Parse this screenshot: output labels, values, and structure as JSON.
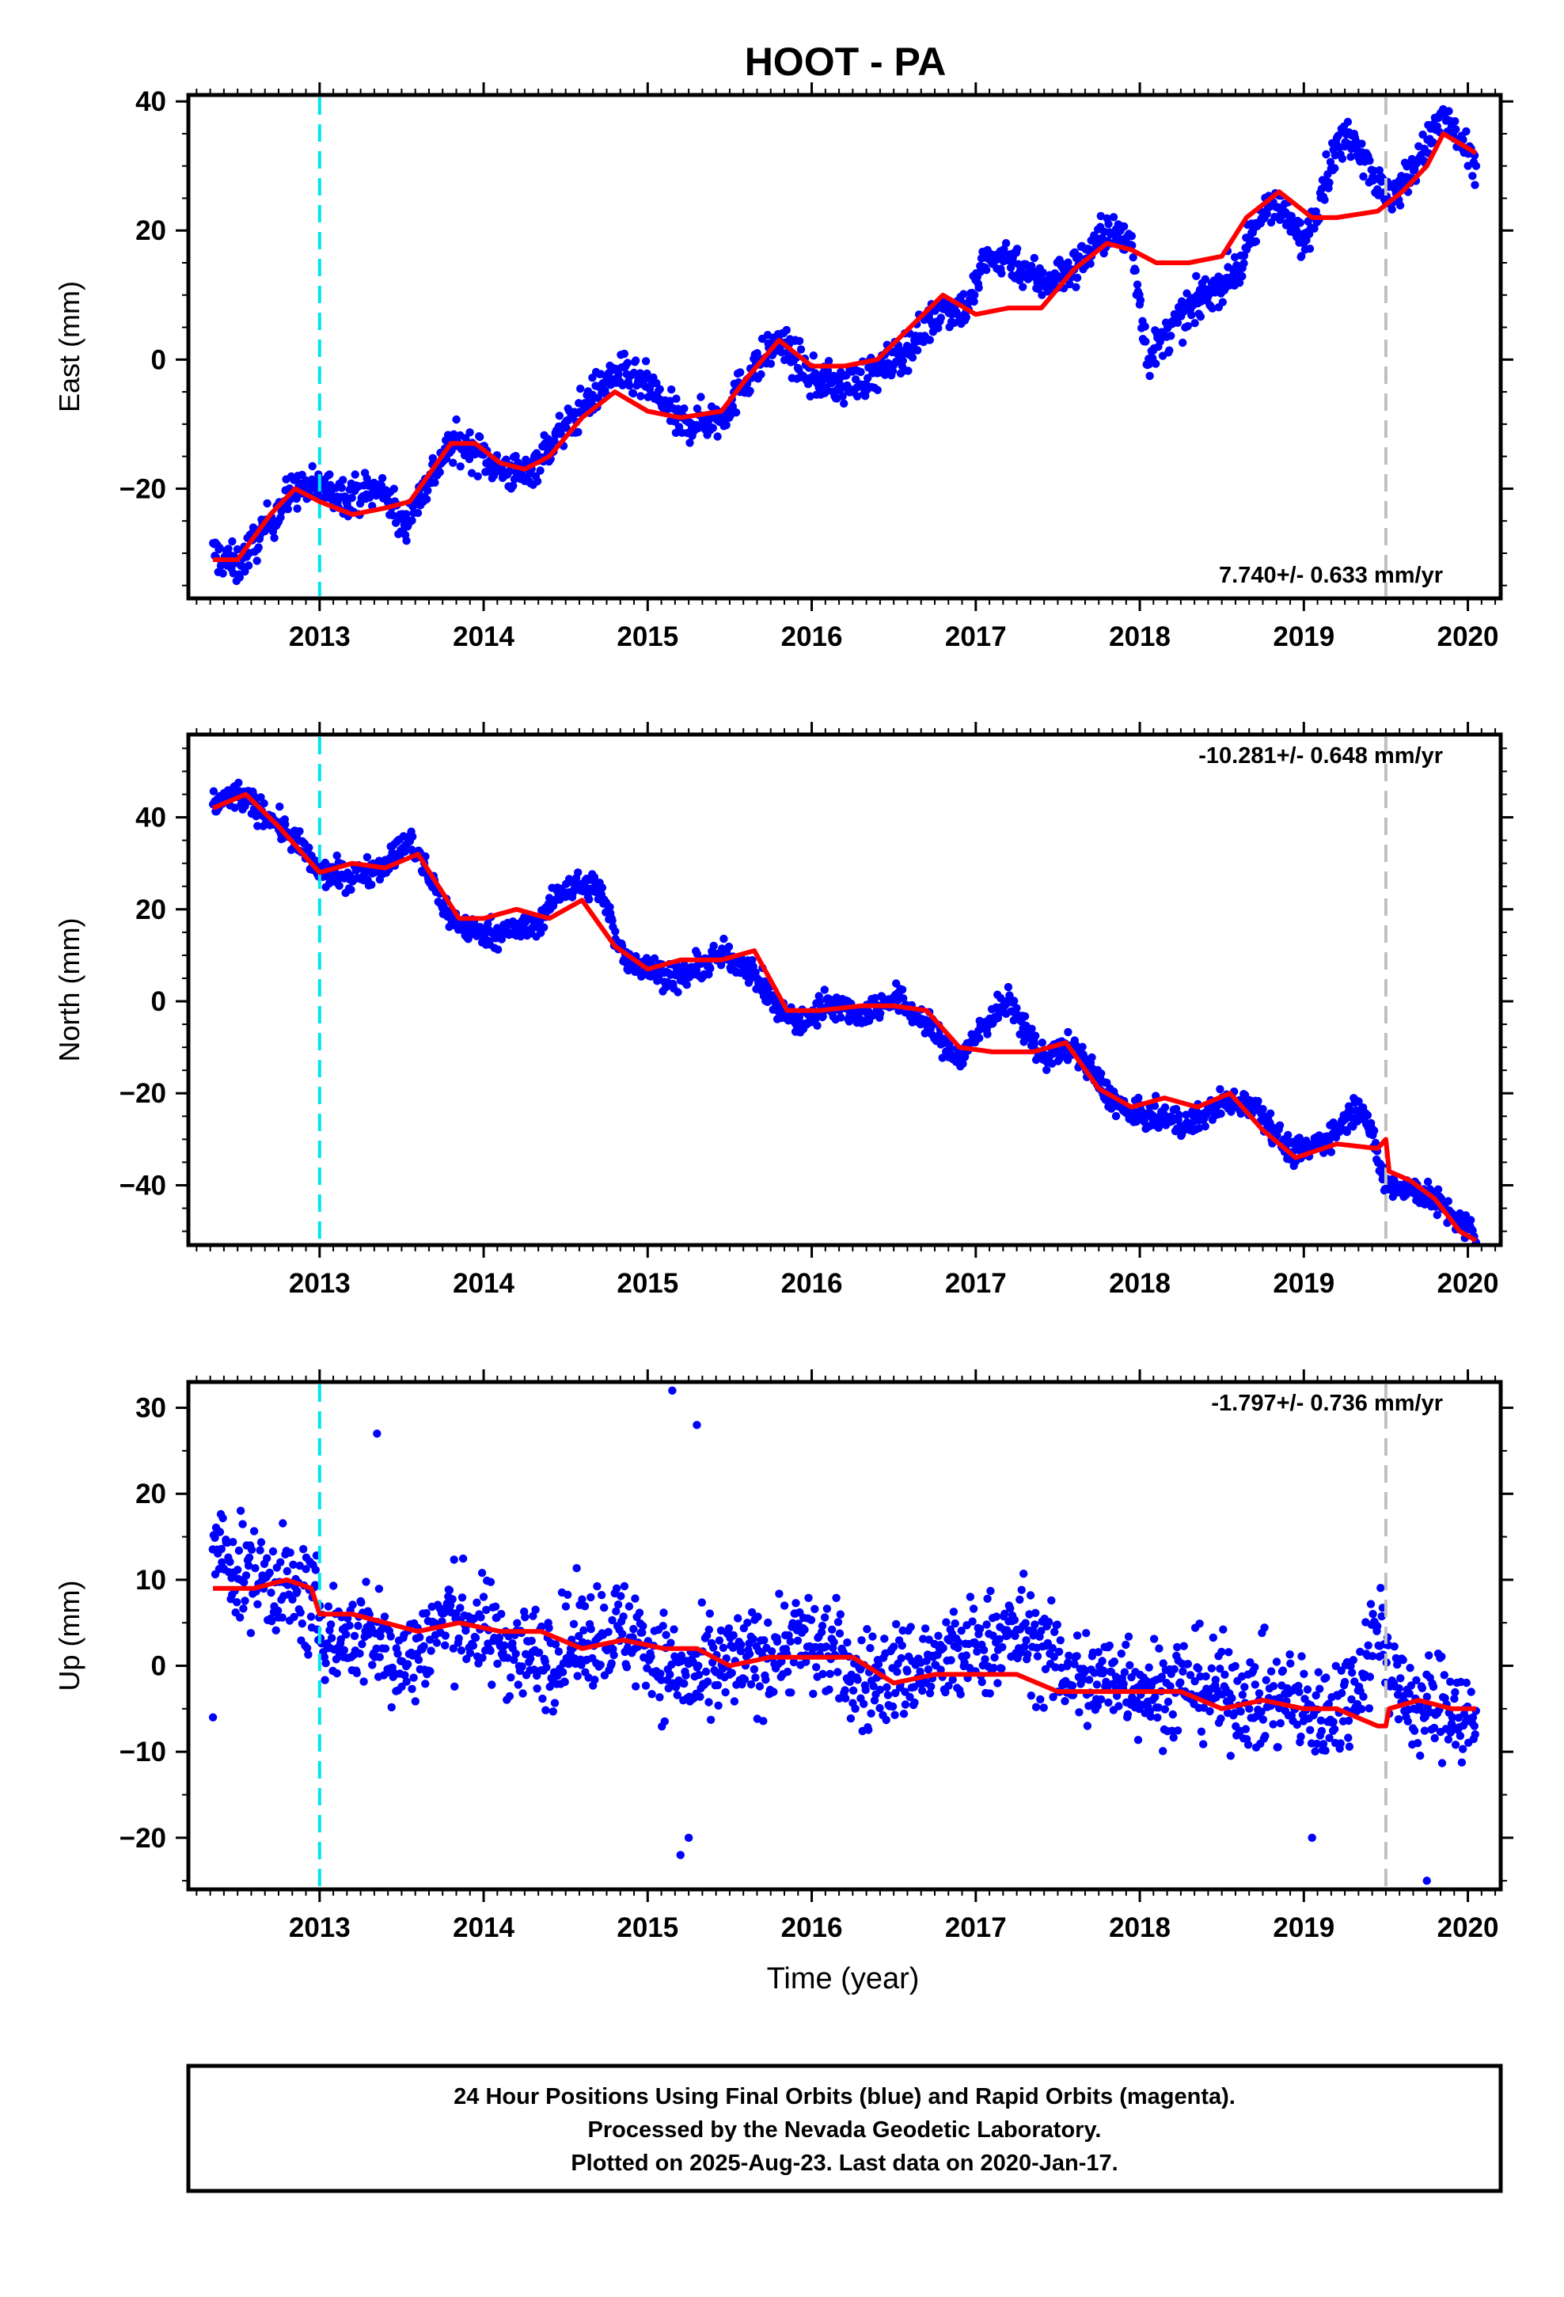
{
  "title": "HOOT - PA",
  "xlabel": "Time (year)",
  "footer": {
    "line1": "24 Hour Positions Using Final Orbits (blue) and Rapid Orbits (magenta).",
    "line2": "Processed by the Nevada Geodetic Laboratory.",
    "line3": "Plotted on 2025-Aug-23. Last data on 2020-Jan-17."
  },
  "colors": {
    "data_points": "#0000ff",
    "model_fit": "#ff0000",
    "marker_cyan": "#00e5ee",
    "marker_gray": "#c0c0c0",
    "frame": "#000000"
  },
  "chart_data": [
    {
      "type": "scatter",
      "ylabel": "East (mm)",
      "rate_text": "7.740+/- 0.633 mm/yr",
      "xlim": [
        2012.2,
        2020.2
      ],
      "ylim": [
        -37,
        41
      ],
      "xticks": [
        2013,
        2014,
        2015,
        2016,
        2017,
        2018,
        2019,
        2020
      ],
      "yticks": [
        -20,
        0,
        20,
        40
      ],
      "vertical_markers": [
        {
          "x": 2013.0,
          "style": "dashed",
          "color": "cyan"
        },
        {
          "x": 2019.5,
          "style": "dashed",
          "color": "gray"
        }
      ],
      "series": [
        {
          "kind": "daily positions",
          "envelope_x": [
            2012.35,
            2012.5,
            2012.7,
            2012.85,
            2013.0,
            2013.2,
            2013.4,
            2013.5,
            2013.8,
            2013.95,
            2014.1,
            2014.25,
            2014.45,
            2014.65,
            2014.8,
            2015.0,
            2015.2,
            2015.45,
            2015.6,
            2015.8,
            2016.0,
            2016.2,
            2016.4,
            2016.6,
            2016.8,
            2016.95,
            2017.05,
            2017.2,
            2017.4,
            2017.6,
            2017.8,
            2017.95,
            2018.05,
            2018.2,
            2018.4,
            2018.6,
            2018.8,
            2019.0,
            2019.2,
            2019.3,
            2019.5,
            2019.6,
            2019.75,
            2019.85,
            2020.05
          ],
          "envelope_y": [
            -30,
            -32,
            -25,
            -20,
            -20,
            -21,
            -20,
            -26,
            -13,
            -14,
            -17,
            -18,
            -12,
            -6,
            -2,
            -4,
            -10,
            -9,
            -3,
            3,
            -3,
            -4,
            -2,
            2,
            8,
            8,
            15,
            16,
            12,
            14,
            20,
            18,
            0,
            5,
            10,
            14,
            25,
            18,
            33,
            35,
            25,
            27,
            33,
            38,
            29
          ]
        },
        {
          "kind": "model fit",
          "x": [
            2012.35,
            2012.5,
            2012.7,
            2012.85,
            2013.0,
            2013.2,
            2013.4,
            2013.55,
            2013.8,
            2013.95,
            2014.1,
            2014.25,
            2014.4,
            2014.6,
            2014.8,
            2015.0,
            2015.2,
            2015.45,
            2015.6,
            2015.8,
            2016.0,
            2016.2,
            2016.4,
            2016.6,
            2016.8,
            2017.0,
            2017.2,
            2017.4,
            2017.6,
            2017.8,
            2017.95,
            2018.1,
            2018.3,
            2018.5,
            2018.65,
            2018.85,
            2019.05,
            2019.2,
            2019.45,
            2019.5,
            2019.6,
            2019.75,
            2019.85,
            2020.05
          ],
          "y": [
            -31,
            -31,
            -24,
            -20,
            -22,
            -24,
            -23,
            -22,
            -13,
            -13,
            -16,
            -17,
            -15,
            -9,
            -5,
            -8,
            -9,
            -8,
            -3,
            3,
            -1,
            -1,
            0,
            5,
            10,
            7,
            8,
            8,
            14,
            18,
            17,
            15,
            15,
            16,
            22,
            26,
            22,
            22,
            23,
            24,
            26,
            30,
            35,
            32
          ]
        }
      ]
    },
    {
      "type": "scatter",
      "ylabel": "North (mm)",
      "rate_text": "-10.281+/- 0.648 mm/yr",
      "xlim": [
        2012.2,
        2020.2
      ],
      "ylim": [
        -53,
        58
      ],
      "xticks": [
        2013,
        2014,
        2015,
        2016,
        2017,
        2018,
        2019,
        2020
      ],
      "yticks": [
        -40,
        -20,
        0,
        20,
        40
      ],
      "vertical_markers": [
        {
          "x": 2013.0,
          "style": "dashed",
          "color": "cyan"
        },
        {
          "x": 2019.5,
          "style": "dashed",
          "color": "gray"
        }
      ],
      "series": [
        {
          "kind": "daily positions",
          "envelope_x": [
            2012.35,
            2012.5,
            2012.7,
            2012.85,
            2013.0,
            2013.2,
            2013.4,
            2013.55,
            2013.8,
            2013.95,
            2014.1,
            2014.3,
            2014.5,
            2014.7,
            2014.85,
            2015.0,
            2015.2,
            2015.45,
            2015.6,
            2015.8,
            2015.95,
            2016.1,
            2016.3,
            2016.5,
            2016.7,
            2016.9,
            2017.05,
            2017.2,
            2017.4,
            2017.6,
            2017.8,
            2017.95,
            2018.1,
            2018.3,
            2018.5,
            2018.7,
            2018.9,
            2019.0,
            2019.2,
            2019.35,
            2019.5,
            2019.6,
            2019.75,
            2019.85,
            2020.05
          ],
          "envelope_y": [
            43,
            45,
            40,
            35,
            28,
            27,
            30,
            35,
            18,
            15,
            15,
            16,
            25,
            25,
            10,
            7,
            5,
            10,
            8,
            -2,
            -5,
            0,
            -3,
            1,
            -5,
            -13,
            -5,
            0,
            -12,
            -10,
            -20,
            -25,
            -25,
            -27,
            -22,
            -22,
            -32,
            -33,
            -28,
            -22,
            -40,
            -40,
            -42,
            -45,
            -51
          ]
        },
        {
          "kind": "model fit",
          "x": [
            2012.35,
            2012.55,
            2012.75,
            2012.95,
            2013.0,
            2013.2,
            2013.4,
            2013.6,
            2013.85,
            2014.0,
            2014.2,
            2014.4,
            2014.6,
            2014.8,
            2015.0,
            2015.2,
            2015.45,
            2015.65,
            2015.85,
            2016.05,
            2016.3,
            2016.5,
            2016.7,
            2016.9,
            2017.1,
            2017.35,
            2017.55,
            2017.75,
            2017.95,
            2018.15,
            2018.35,
            2018.55,
            2018.75,
            2018.95,
            2019.2,
            2019.45,
            2019.5,
            2019.52,
            2019.65,
            2019.8,
            2019.95,
            2020.05
          ],
          "y": [
            42,
            45,
            38,
            30,
            28,
            30,
            29,
            32,
            18,
            18,
            20,
            18,
            22,
            12,
            7,
            9,
            9,
            11,
            -2,
            -2,
            -1,
            -1,
            -2,
            -10,
            -11,
            -11,
            -9,
            -19,
            -23,
            -21,
            -23,
            -20,
            -28,
            -34,
            -31,
            -32,
            -30,
            -37,
            -39,
            -43,
            -50,
            -52
          ]
        }
      ]
    },
    {
      "type": "scatter",
      "ylabel": "Up (mm)",
      "rate_text": "-1.797+/- 0.736 mm/yr",
      "xlim": [
        2012.2,
        2020.2
      ],
      "ylim": [
        -26,
        33
      ],
      "xticks": [
        2013,
        2014,
        2015,
        2016,
        2017,
        2018,
        2019,
        2020
      ],
      "yticks": [
        -20,
        -10,
        0,
        10,
        20,
        30
      ],
      "vertical_markers": [
        {
          "x": 2013.0,
          "style": "dashed",
          "color": "cyan"
        },
        {
          "x": 2019.5,
          "style": "dashed",
          "color": "gray"
        }
      ],
      "series": [
        {
          "kind": "daily positions",
          "envelope_x": [
            2012.35,
            2012.5,
            2012.7,
            2012.9,
            2013.1,
            2013.3,
            2013.5,
            2013.8,
            2014.0,
            2014.3,
            2014.5,
            2014.7,
            2014.9,
            2015.1,
            2015.3,
            2015.5,
            2015.7,
            2015.9,
            2016.1,
            2016.3,
            2016.5,
            2016.7,
            2016.9,
            2017.1,
            2017.3,
            2017.5,
            2017.7,
            2017.9,
            2018.1,
            2018.3,
            2018.5,
            2018.7,
            2018.9,
            2019.1,
            2019.3,
            2019.45,
            2019.6,
            2019.75,
            2019.9,
            2020.05
          ],
          "envelope_y": [
            14,
            11,
            10,
            8,
            3,
            4,
            0,
            6,
            4,
            1,
            2,
            4,
            4,
            0,
            -2,
            0,
            1,
            3,
            2,
            -2,
            -1,
            0,
            1,
            3,
            4,
            0,
            -2,
            -1,
            -3,
            -2,
            -3,
            -4,
            -4,
            -6,
            -3,
            5,
            -4,
            -5,
            -4,
            -8
          ],
          "outliers": [
            {
              "x": 2015.15,
              "y": 32
            },
            {
              "x": 2015.3,
              "y": 28
            },
            {
              "x": 2013.35,
              "y": 27
            },
            {
              "x": 2015.2,
              "y": -22
            },
            {
              "x": 2015.25,
              "y": -20
            },
            {
              "x": 2019.75,
              "y": -25
            },
            {
              "x": 2019.05,
              "y": -20
            },
            {
              "x": 2012.35,
              "y": -6
            }
          ]
        },
        {
          "kind": "model fit",
          "x": [
            2012.35,
            2012.6,
            2012.8,
            2012.95,
            2013.0,
            2013.2,
            2013.4,
            2013.6,
            2013.85,
            2014.1,
            2014.35,
            2014.6,
            2014.85,
            2015.1,
            2015.3,
            2015.5,
            2015.75,
            2016.0,
            2016.25,
            2016.5,
            2016.75,
            2017.0,
            2017.25,
            2017.5,
            2017.75,
            2018.0,
            2018.25,
            2018.5,
            2018.75,
            2019.0,
            2019.2,
            2019.45,
            2019.5,
            2019.52,
            2019.7,
            2019.9,
            2020.05
          ],
          "y": [
            9,
            9,
            10,
            9,
            6,
            6,
            5,
            4,
            5,
            4,
            4,
            2,
            3,
            2,
            2,
            0,
            1,
            1,
            1,
            -2,
            -1,
            -1,
            -1,
            -3,
            -3,
            -3,
            -3,
            -5,
            -4,
            -5,
            -5,
            -7,
            -7,
            -5,
            -4,
            -5,
            -5
          ]
        }
      ]
    }
  ]
}
